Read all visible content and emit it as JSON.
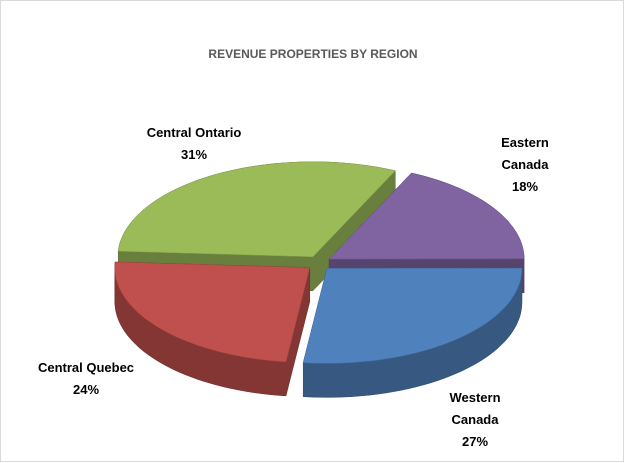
{
  "chart_data": {
    "type": "pie",
    "title": "REVENUE PROPERTIES BY REGION",
    "categories": [
      "Eastern Canada",
      "Western Canada",
      "Central Quebec",
      "Central Ontario"
    ],
    "values": [
      18,
      27,
      24,
      31
    ],
    "value_labels": [
      "18%",
      "27%",
      "24%",
      "31%"
    ],
    "colors": [
      "#8064a2",
      "#4f81bd",
      "#c0504d",
      "#9bbb59"
    ]
  }
}
